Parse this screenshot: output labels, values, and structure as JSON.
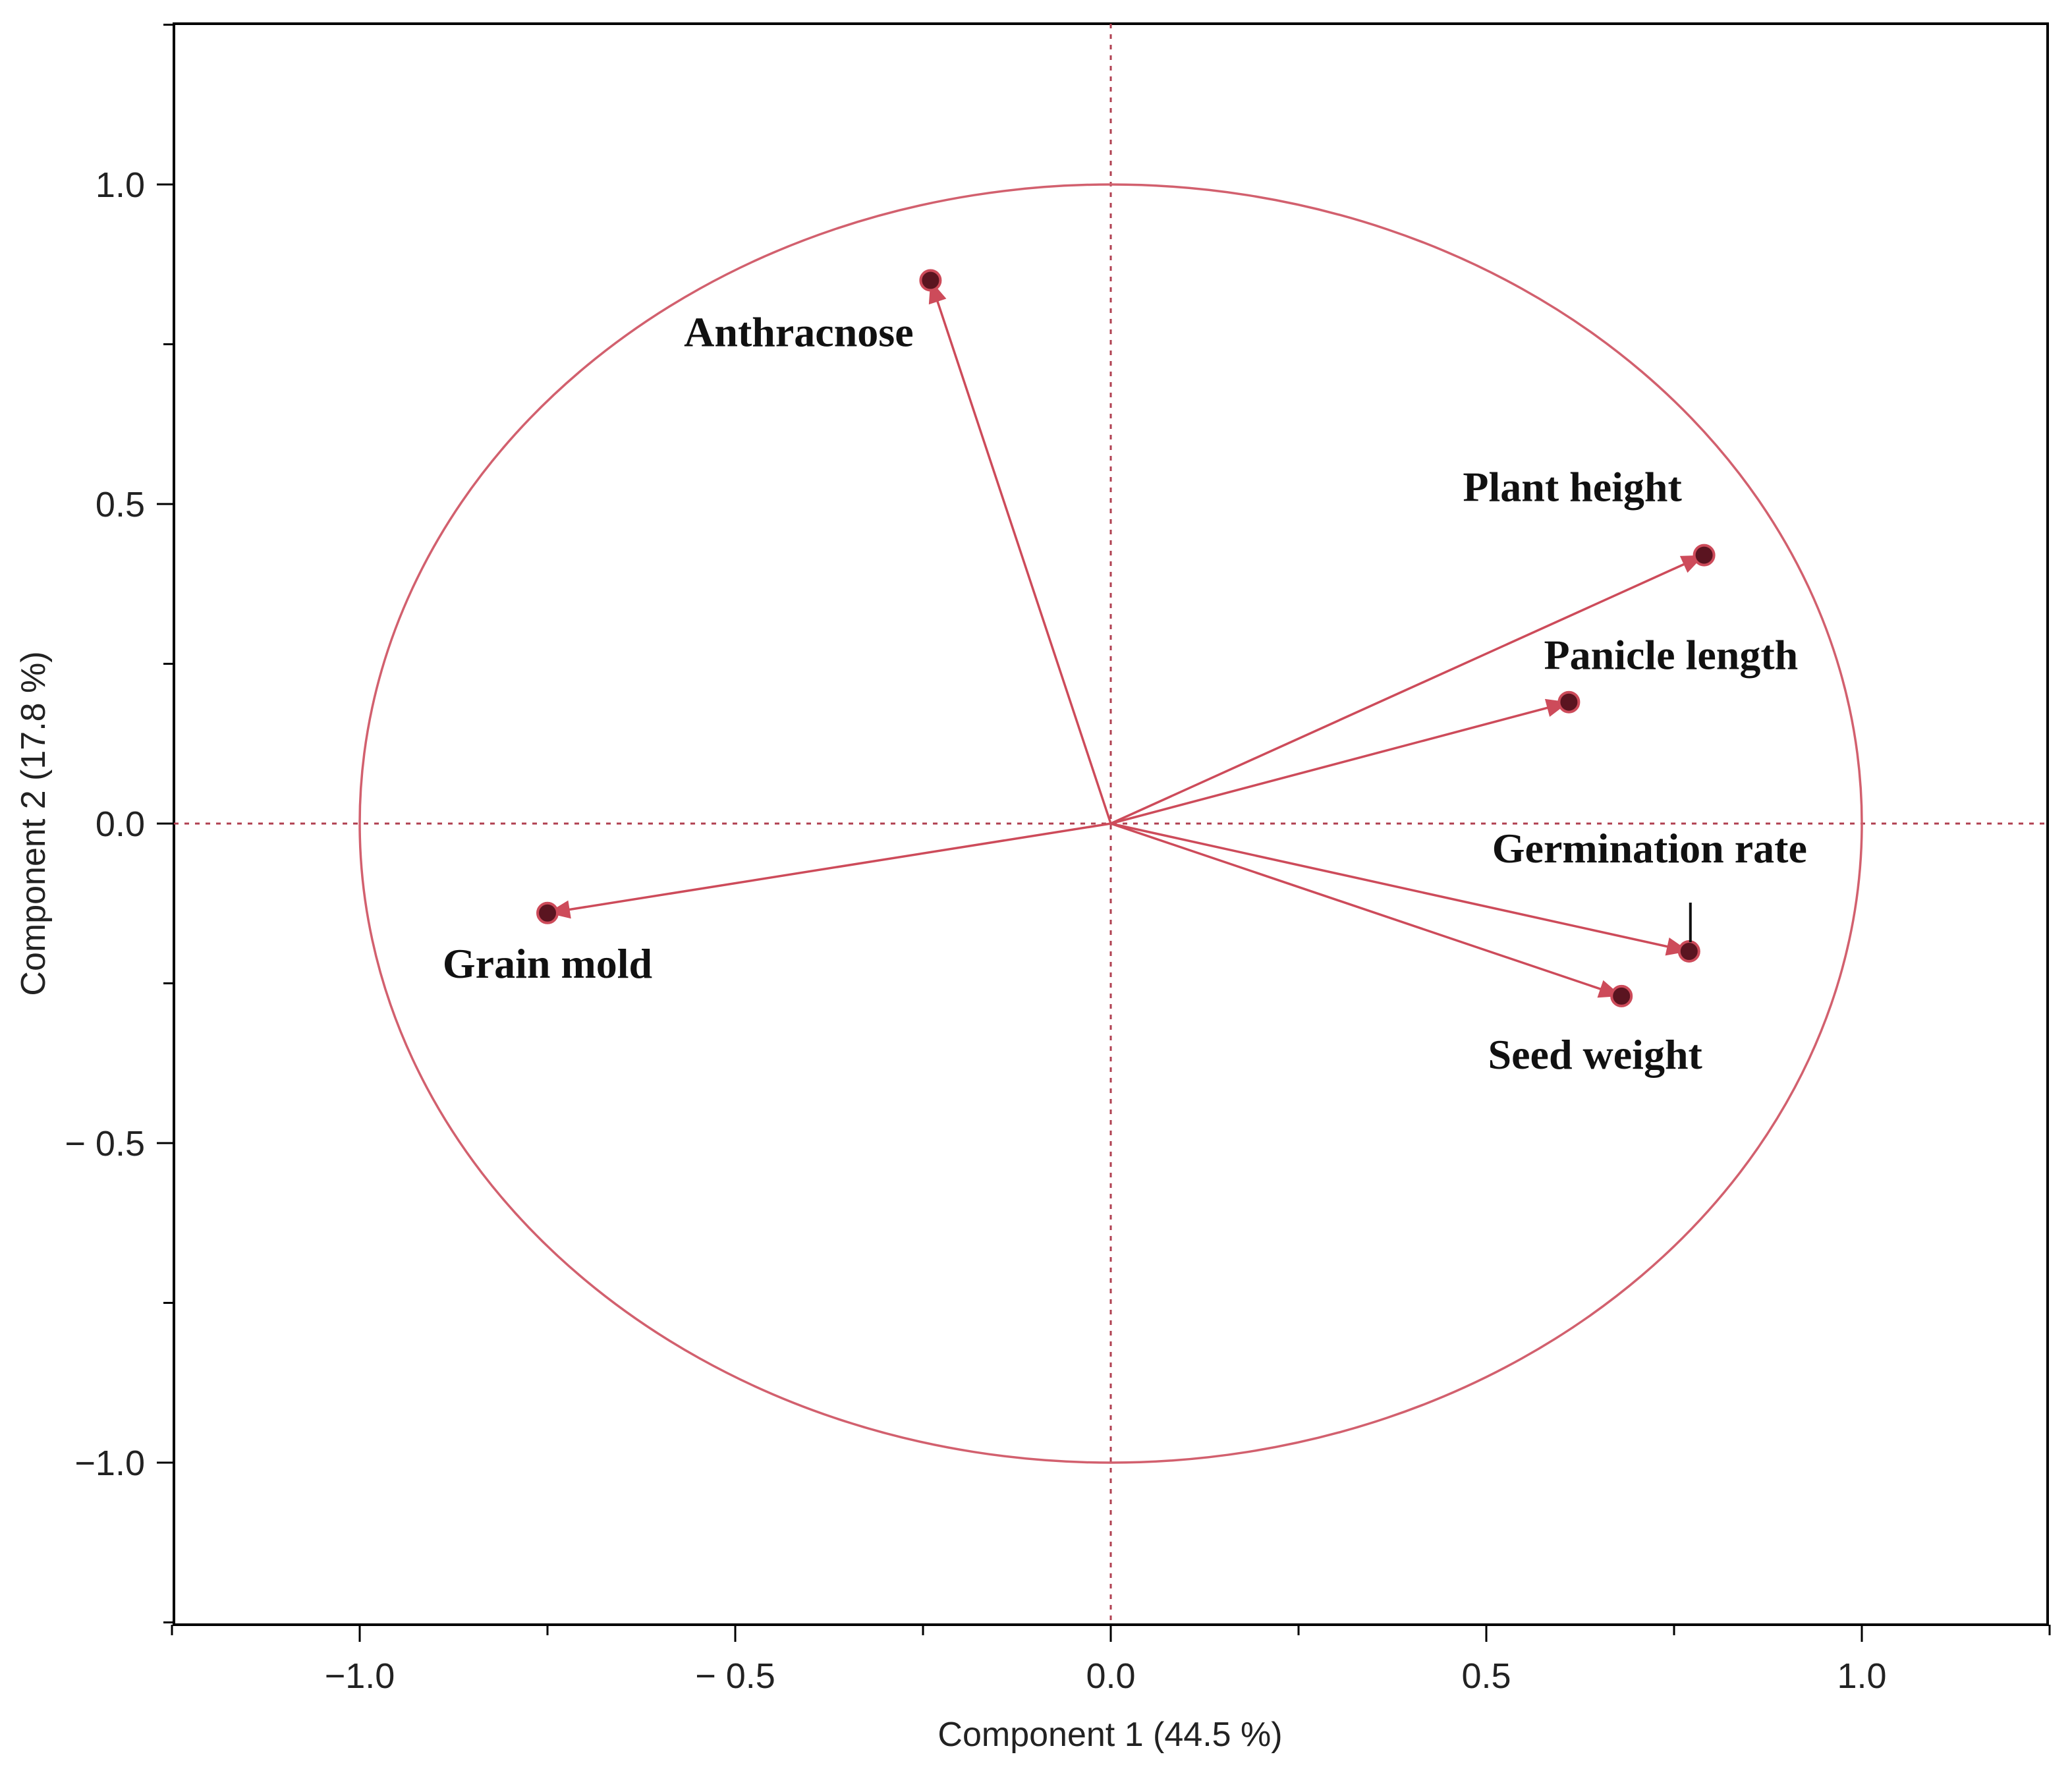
{
  "chart_data": {
    "type": "scatter",
    "subtype": "pca-correlation-circle",
    "xlabel": "Component 1  (44.5 %)",
    "ylabel": "Component 2  (17.8 %)",
    "xlim": [
      -1.25,
      1.25
    ],
    "ylim": [
      -1.25,
      1.25
    ],
    "xticks": [
      -1.0,
      -0.5,
      0.0,
      0.5,
      1.0
    ],
    "yticks": [
      -1.0,
      -0.5,
      0.0,
      0.5,
      1.0
    ],
    "xtick_labels": [
      "−1.0",
      "− 0.5",
      "0.0",
      "0.5",
      "1.0"
    ],
    "ytick_labels": [
      "−1.0",
      "− 0.5",
      "0.0",
      "0.5",
      "1.0"
    ],
    "minor_tick_step": 0.25,
    "unit_circle": true,
    "reference_lines": {
      "x": 0,
      "y": 0,
      "style": "dotted"
    },
    "grid": false,
    "colors": {
      "vector": "#cd4b5a",
      "circle": "#d2606e",
      "reference": "#b04050",
      "point_fill": "#5a1420"
    },
    "points": [
      {
        "label": "Anthracnose",
        "x": -0.24,
        "y": 0.85
      },
      {
        "label": "Plant height",
        "x": 0.79,
        "y": 0.42
      },
      {
        "label": "Panicle length",
        "x": 0.61,
        "y": 0.19
      },
      {
        "label": "Germination rate",
        "x": 0.77,
        "y": -0.2
      },
      {
        "label": "Seed weight",
        "x": 0.68,
        "y": -0.27
      },
      {
        "label": "Grain mold",
        "x": -0.75,
        "y": -0.14
      }
    ]
  }
}
